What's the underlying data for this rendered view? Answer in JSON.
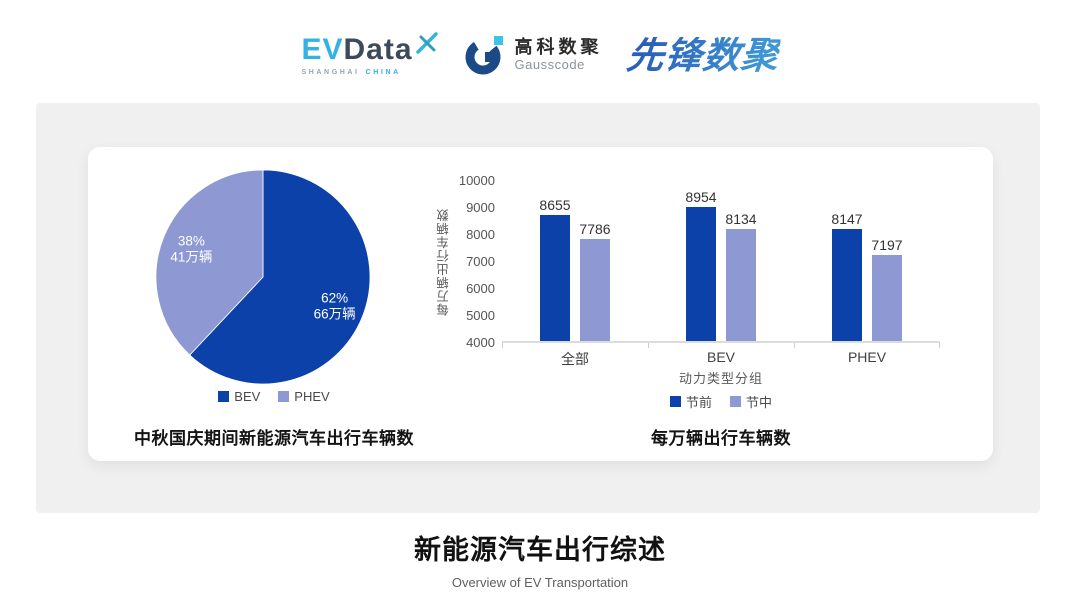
{
  "header": {
    "evdata": {
      "part1": "EV",
      "part2": "Data",
      "sub_left": "SHANGHAI",
      "sub_right": "CHINA"
    },
    "gausscode": {
      "name_cn": "高科数聚",
      "name_en": "Gausscode"
    },
    "xianfeng": {
      "name": "先锋数聚"
    }
  },
  "colors": {
    "series_dark_blue": "#0b41a8",
    "series_light_blue": "#8e99d4",
    "panel_bg": "#f0f0f0",
    "evdata_accent": "#35b2e5",
    "evdata_dark": "#3d4a5c",
    "gausscode_navy": "#1c4a86",
    "gausscode_cyan": "#3cc3e8"
  },
  "chart_data": [
    {
      "type": "pie",
      "title": "中秋国庆期间新能源汽车出行车辆数",
      "slices": [
        {
          "label": "BEV",
          "percent": 62,
          "amount": "66万辆",
          "color": "#0b41a8"
        },
        {
          "label": "PHEV",
          "percent": 38,
          "amount": "41万辆",
          "color": "#8e99d4"
        }
      ],
      "legend_position": "bottom",
      "start_angle_deg": 0,
      "direction": "clockwise"
    },
    {
      "type": "bar",
      "title": "每万辆出行车辆数",
      "ylabel": "每万辆出行车辆数",
      "xlabel": "动力类型分组",
      "categories": [
        "全部",
        "BEV",
        "PHEV"
      ],
      "series": [
        {
          "name": "节前",
          "color": "#0b41a8",
          "values": [
            8655,
            8954,
            8147
          ]
        },
        {
          "name": "节中",
          "color": "#8e99d4",
          "values": [
            7786,
            8134,
            7197
          ]
        }
      ],
      "ylim": [
        4000,
        10000
      ],
      "yticks": [
        4000,
        5000,
        6000,
        7000,
        8000,
        9000,
        10000
      ],
      "grid": false,
      "legend_position": "bottom"
    }
  ],
  "footer": {
    "title": "新能源汽车出行综述",
    "subtitle": "Overview of EV Transportation"
  }
}
